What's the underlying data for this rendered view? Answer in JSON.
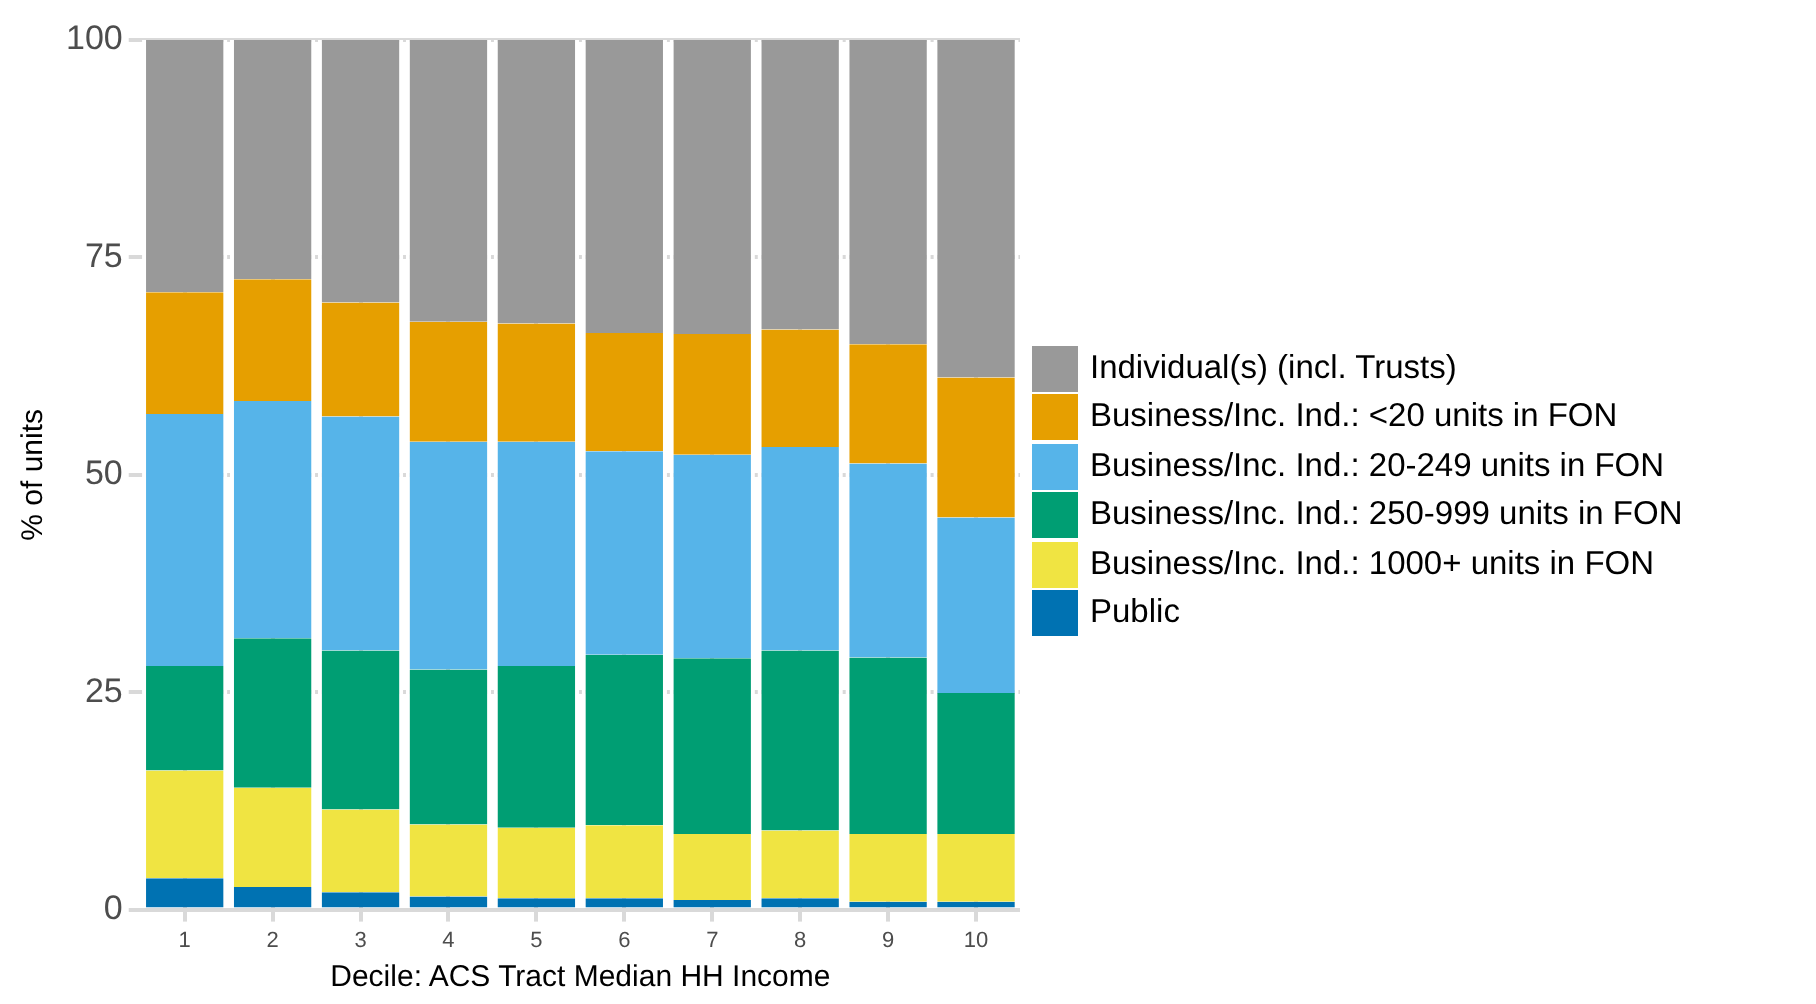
{
  "chart_data": {
    "type": "bar",
    "stacked": true,
    "xlabel": "Decile: ACS Tract Median HH Income",
    "ylabel": "% of units",
    "categories": [
      "1",
      "2",
      "3",
      "4",
      "5",
      "6",
      "7",
      "8",
      "9",
      "10"
    ],
    "ylim": [
      0,
      100
    ],
    "yticks": [
      0,
      25,
      50,
      75,
      100
    ],
    "grid": true,
    "legend": "right",
    "series": [
      {
        "name": "Public",
        "color": "#0072b2",
        "values": [
          3.6,
          2.6,
          2,
          1.5,
          1.3,
          1.3,
          1.1,
          1.3,
          0.9,
          0.9
        ]
      },
      {
        "name": "Business/Inc. Ind.: 1000+ units in FON",
        "color": "#f0e442",
        "values": [
          12.4,
          11.4,
          9.5,
          8.3,
          8.1,
          8.4,
          7.6,
          7.8,
          7.8,
          7.8
        ]
      },
      {
        "name": "Business/Inc. Ind.: 250-999 units in FON",
        "color": "#009e73",
        "values": [
          12,
          17.2,
          18.3,
          17.8,
          18.6,
          19.6,
          20.2,
          20.7,
          20.3,
          16.2
        ]
      },
      {
        "name": "Business/Inc. Ind.: 20-249 units in FON",
        "color": "#56b4e9",
        "values": [
          29,
          27.3,
          26.9,
          26.2,
          25.8,
          23.4,
          23.4,
          23.4,
          22.3,
          20.2
        ]
      },
      {
        "name": "Business/Inc. Ind.: <20 units in FON",
        "color": "#e69f00",
        "values": [
          14,
          14,
          13.1,
          13.8,
          13.6,
          13.6,
          13.9,
          13.5,
          13.7,
          16.1
        ]
      },
      {
        "name": "Individual(s) (incl. Trusts)",
        "color": "#999999",
        "values": [
          29,
          27.5,
          30.2,
          32.4,
          32.6,
          33.7,
          33.8,
          33.3,
          35,
          38.8
        ]
      }
    ]
  }
}
